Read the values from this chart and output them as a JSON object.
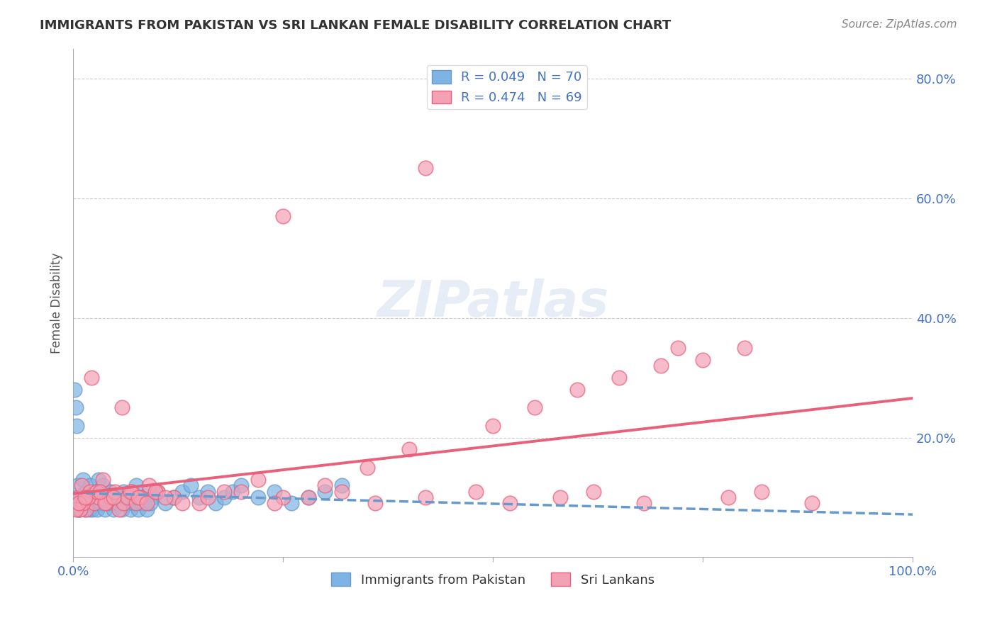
{
  "title": "IMMIGRANTS FROM PAKISTAN VS SRI LANKAN FEMALE DISABILITY CORRELATION CHART",
  "source_text": "Source: ZipAtlas.com",
  "xlabel": "",
  "ylabel": "Female Disability",
  "legend_entry1": "R = 0.049   N = 70",
  "legend_entry2": "R = 0.474   N = 69",
  "legend_label1": "Immigrants from Pakistan",
  "legend_label2": "Sri Lankans",
  "watermark": "ZIPatlas",
  "xlim": [
    0,
    1.0
  ],
  "ylim": [
    0,
    0.85
  ],
  "yticks": [
    0.0,
    0.2,
    0.4,
    0.6,
    0.8
  ],
  "ytick_labels": [
    "",
    "20.0%",
    "40.0%",
    "60.0%",
    "80.0%"
  ],
  "xticks": [
    0.0,
    0.25,
    0.5,
    0.75,
    1.0
  ],
  "xtick_labels": [
    "0.0%",
    "",
    "",
    "",
    "100.0%"
  ],
  "color_blue": "#7EB4E3",
  "color_pink": "#F4A0B5",
  "color_blue_line": "#6699CC",
  "color_pink_line": "#E8607A",
  "color_title": "#333333",
  "color_axis_labels": "#4472C4",
  "color_source": "#666666",
  "color_grid": "#CCCCCC",
  "color_legend_text": "#4472C4",
  "pakistan_x": [
    0.005,
    0.008,
    0.01,
    0.012,
    0.015,
    0.018,
    0.02,
    0.022,
    0.025,
    0.028,
    0.03,
    0.032,
    0.035,
    0.04,
    0.045,
    0.05,
    0.055,
    0.06,
    0.065,
    0.07,
    0.075,
    0.08,
    0.085,
    0.09,
    0.095,
    0.1,
    0.11,
    0.12,
    0.13,
    0.14,
    0.15,
    0.16,
    0.17,
    0.18,
    0.19,
    0.2,
    0.22,
    0.24,
    0.26,
    0.28,
    0.3,
    0.32,
    0.002,
    0.003,
    0.004,
    0.006,
    0.007,
    0.009,
    0.011,
    0.013,
    0.014,
    0.016,
    0.019,
    0.021,
    0.023,
    0.026,
    0.029,
    0.033,
    0.038,
    0.042,
    0.048,
    0.052,
    0.058,
    0.062,
    0.068,
    0.072,
    0.078,
    0.082,
    0.088,
    0.092
  ],
  "pakistan_y": [
    0.12,
    0.1,
    0.09,
    0.13,
    0.11,
    0.1,
    0.12,
    0.1,
    0.09,
    0.11,
    0.13,
    0.1,
    0.12,
    0.1,
    0.11,
    0.09,
    0.1,
    0.11,
    0.09,
    0.1,
    0.12,
    0.1,
    0.09,
    0.11,
    0.1,
    0.11,
    0.09,
    0.1,
    0.11,
    0.12,
    0.1,
    0.11,
    0.09,
    0.1,
    0.11,
    0.12,
    0.1,
    0.11,
    0.09,
    0.1,
    0.11,
    0.12,
    0.28,
    0.25,
    0.22,
    0.08,
    0.08,
    0.09,
    0.1,
    0.09,
    0.08,
    0.09,
    0.08,
    0.09,
    0.08,
    0.09,
    0.08,
    0.09,
    0.08,
    0.09,
    0.08,
    0.09,
    0.08,
    0.09,
    0.08,
    0.09,
    0.08,
    0.09,
    0.08,
    0.09
  ],
  "srilanka_x": [
    0.005,
    0.01,
    0.015,
    0.02,
    0.025,
    0.03,
    0.035,
    0.04,
    0.045,
    0.05,
    0.055,
    0.06,
    0.065,
    0.07,
    0.075,
    0.08,
    0.09,
    0.1,
    0.12,
    0.15,
    0.18,
    0.22,
    0.25,
    0.3,
    0.35,
    0.4,
    0.5,
    0.55,
    0.6,
    0.65,
    0.7,
    0.75,
    0.8,
    0.008,
    0.012,
    0.018,
    0.028,
    0.038,
    0.048,
    0.058,
    0.068,
    0.078,
    0.088,
    0.098,
    0.11,
    0.13,
    0.16,
    0.2,
    0.24,
    0.28,
    0.32,
    0.36,
    0.42,
    0.48,
    0.52,
    0.58,
    0.62,
    0.68,
    0.72,
    0.78,
    0.82,
    0.88,
    0.25,
    0.42,
    0.003,
    0.007,
    0.014,
    0.022,
    0.032
  ],
  "srilanka_y": [
    0.1,
    0.12,
    0.08,
    0.11,
    0.09,
    0.1,
    0.13,
    0.09,
    0.1,
    0.11,
    0.08,
    0.09,
    0.1,
    0.11,
    0.09,
    0.1,
    0.12,
    0.11,
    0.1,
    0.09,
    0.11,
    0.13,
    0.1,
    0.12,
    0.15,
    0.18,
    0.22,
    0.25,
    0.28,
    0.3,
    0.32,
    0.33,
    0.35,
    0.08,
    0.09,
    0.1,
    0.11,
    0.09,
    0.1,
    0.25,
    0.11,
    0.1,
    0.09,
    0.11,
    0.1,
    0.09,
    0.1,
    0.11,
    0.09,
    0.1,
    0.11,
    0.09,
    0.1,
    0.11,
    0.09,
    0.1,
    0.11,
    0.09,
    0.35,
    0.1,
    0.11,
    0.09,
    0.57,
    0.65,
    0.08,
    0.09,
    0.1,
    0.3,
    0.11
  ]
}
